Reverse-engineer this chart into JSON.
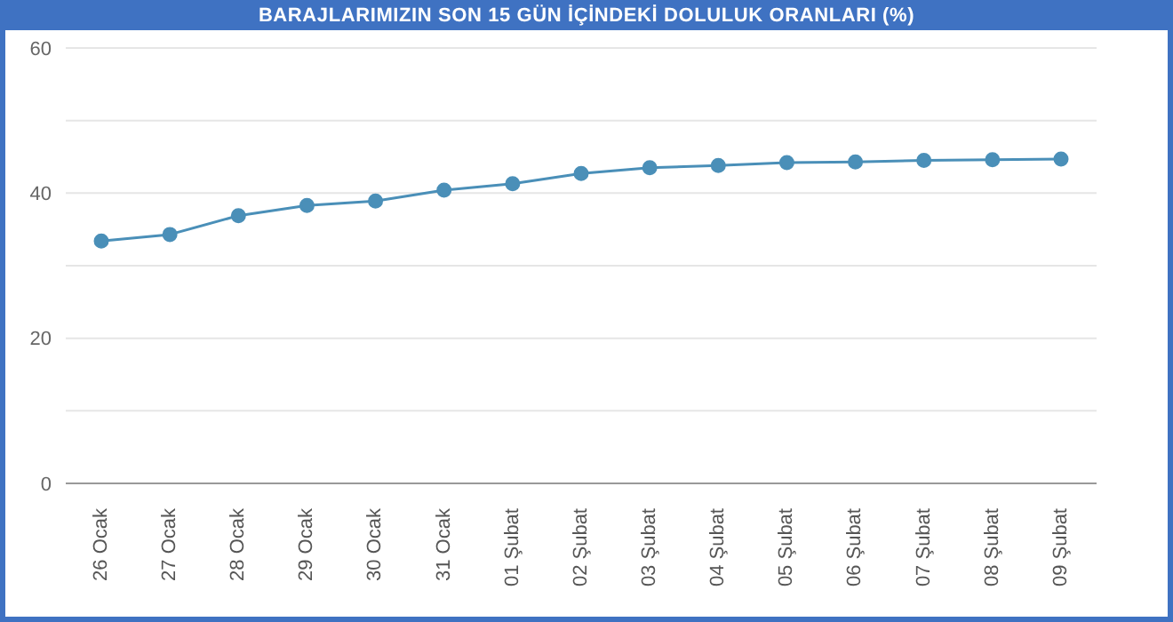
{
  "chart_data": {
    "type": "line",
    "title": "BARAJLARIMIZIN SON 15 GÜN İÇİNDEKİ DOLULUK ORANLARI (%)",
    "categories": [
      "26 Ocak",
      "27 Ocak",
      "28 Ocak",
      "29 Ocak",
      "30 Ocak",
      "31 Ocak",
      "01 Şubat",
      "02 Şubat",
      "03 Şubat",
      "04 Şubat",
      "05 Şubat",
      "06 Şubat",
      "07 Şubat",
      "08 Şubat",
      "09 Şubat"
    ],
    "series": [
      {
        "color": "#4a8fb8",
        "values": [
          33.4,
          34.3,
          36.9,
          38.3,
          38.9,
          40.4,
          41.3,
          42.7,
          43.5,
          43.8,
          44.2,
          44.3,
          44.5,
          44.6,
          44.7
        ]
      }
    ],
    "ylim": [
      0,
      60
    ],
    "yticks": [
      0,
      {
        "value": 10,
        "label": null
      },
      20,
      {
        "value": 30,
        "label": null
      },
      40,
      {
        "value": 50,
        "label": null
      },
      60
    ],
    "grid": "y",
    "marker": "circle",
    "legend": false
  }
}
